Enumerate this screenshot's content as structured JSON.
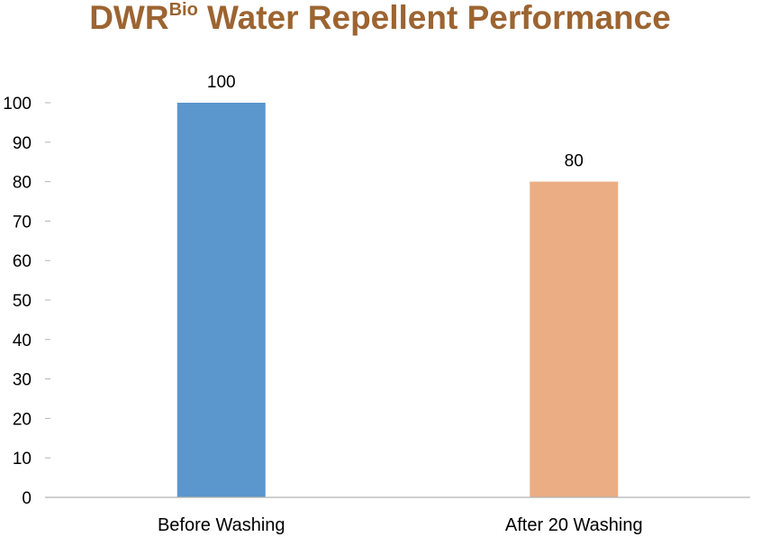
{
  "chart_data": {
    "type": "bar",
    "title": "DWR",
    "title_superscript": "Bio",
    "title_rest": " Water Repellent Performance",
    "categories": [
      "Before Washing",
      "After 20 Washing"
    ],
    "values": [
      100,
      80
    ],
    "data_labels": [
      "100",
      "80"
    ],
    "bar_colors": [
      "#5b96cc",
      "#ebad83"
    ],
    "yticks": [
      "0",
      "10",
      "20",
      "30",
      "40",
      "50",
      "60",
      "70",
      "80",
      "90",
      "100"
    ],
    "ylim": [
      0,
      100
    ],
    "xlabel": "",
    "ylabel": "",
    "grid": false,
    "legend": "none"
  },
  "colors": {
    "title": "#9c6431",
    "axis": "#b3b3b3",
    "text": "#000000"
  }
}
